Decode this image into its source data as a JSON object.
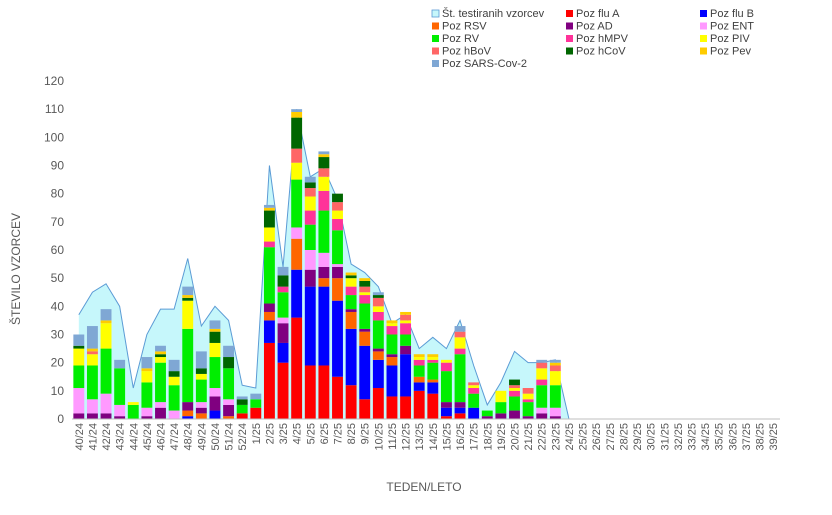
{
  "chart_data": {
    "type": "bar",
    "title": "",
    "xlabel": "TEDEN/LETO",
    "ylabel": "ŠTEVILO VZORCEV",
    "ylim": [
      0,
      120
    ],
    "yticks": [
      0,
      10,
      20,
      30,
      40,
      50,
      60,
      70,
      80,
      90,
      100,
      110,
      120
    ],
    "grid": false,
    "legend_position": "top-right",
    "categories": [
      "40/24",
      "41/24",
      "42/24",
      "43/24",
      "44/24",
      "45/24",
      "46/24",
      "47/24",
      "48/24",
      "49/24",
      "50/24",
      "51/24",
      "52/24",
      "1/25",
      "2/25",
      "3/25",
      "4/25",
      "5/25",
      "6/25",
      "7/25",
      "8/25",
      "9/25",
      "10/25",
      "11/25",
      "12/25",
      "13/25",
      "14/25",
      "15/25",
      "16/25",
      "17/25",
      "18/25",
      "19/25",
      "20/25",
      "21/25",
      "22/25",
      "23/25",
      "24/25",
      "25/25",
      "26/25",
      "27/25",
      "28/25",
      "29/25",
      "30/25",
      "31/25",
      "32/25",
      "33/25",
      "34/25",
      "35/25",
      "36/25",
      "37/25",
      "38/25",
      "39/25"
    ],
    "total": {
      "name": "Št. testiranih vzorcev",
      "color": "#c6f7fb",
      "line_color": "#5b9bd5",
      "values": [
        37,
        45,
        48,
        40,
        11,
        30,
        39,
        39,
        57,
        33,
        40,
        35,
        12,
        11,
        90,
        54,
        110,
        86,
        89,
        78,
        55,
        52,
        47,
        34,
        37,
        25,
        29,
        25,
        35,
        19,
        5,
        13,
        24,
        20,
        20,
        21,
        0,
        null,
        null,
        null,
        null,
        null,
        null,
        null,
        null,
        null,
        null,
        null,
        null,
        null,
        null,
        null
      ]
    },
    "series": [
      {
        "name": "Poz flu A",
        "color": "#ff0000",
        "values": [
          0,
          0,
          0,
          0,
          0,
          0,
          0,
          0,
          0,
          0,
          0,
          0,
          2,
          4,
          27,
          20,
          36,
          19,
          19,
          15,
          12,
          7,
          11,
          8,
          8,
          10,
          9,
          1,
          2,
          0,
          0,
          0,
          0,
          0,
          0,
          0,
          0,
          0,
          0,
          0,
          0,
          0,
          0,
          0,
          0,
          0,
          0,
          0,
          0,
          0,
          0,
          0
        ]
      },
      {
        "name": "Poz flu B",
        "color": "#0000ff",
        "values": [
          0,
          0,
          0,
          0,
          0,
          0,
          0,
          0,
          1,
          0,
          3,
          0,
          0,
          0,
          8,
          7,
          17,
          28,
          28,
          27,
          20,
          19,
          10,
          11,
          15,
          3,
          4,
          3,
          2,
          4,
          0,
          0,
          0,
          0,
          0,
          0,
          0,
          0,
          0,
          0,
          0,
          0,
          0,
          0,
          0,
          0,
          0,
          0,
          0,
          0,
          0,
          0
        ]
      },
      {
        "name": "Poz RSV",
        "color": "#ff6600",
        "values": [
          0,
          0,
          0,
          0,
          0,
          0,
          0,
          0,
          2,
          2,
          0,
          1,
          0,
          0,
          3,
          0,
          11,
          0,
          3,
          8,
          6,
          5,
          3,
          3,
          0,
          2,
          1,
          0,
          0,
          0,
          0,
          0,
          0,
          0,
          0,
          0,
          0,
          0,
          0,
          0,
          0,
          0,
          0,
          0,
          0,
          0,
          0,
          0,
          0,
          0,
          0,
          0
        ]
      },
      {
        "name": "Poz AD",
        "color": "#800080",
        "values": [
          2,
          2,
          2,
          1,
          0,
          1,
          4,
          0,
          3,
          2,
          5,
          4,
          0,
          0,
          3,
          7,
          0,
          6,
          4,
          4,
          1,
          1,
          1,
          1,
          3,
          0,
          0,
          2,
          2,
          0,
          1,
          2,
          3,
          1,
          2,
          1,
          0,
          0,
          0,
          0,
          0,
          0,
          0,
          0,
          0,
          0,
          0,
          0,
          0,
          0,
          0,
          0
        ]
      },
      {
        "name": "Poz ENT",
        "color": "#ff99ff",
        "values": [
          9,
          5,
          7,
          4,
          0,
          3,
          2,
          3,
          0,
          2,
          3,
          2,
          0,
          0,
          0,
          2,
          4,
          7,
          5,
          1,
          0,
          0,
          0,
          0,
          0,
          0,
          0,
          0,
          0,
          0,
          0,
          0,
          0,
          0,
          2,
          3,
          0,
          0,
          0,
          0,
          0,
          0,
          0,
          0,
          0,
          0,
          0,
          0,
          0,
          0,
          0,
          0
        ]
      },
      {
        "name": "Poz RV",
        "color": "#00ee00",
        "values": [
          8,
          12,
          16,
          13,
          5,
          9,
          14,
          9,
          26,
          8,
          11,
          11,
          3,
          3,
          20,
          9,
          17,
          9,
          15,
          12,
          5,
          9,
          10,
          7,
          4,
          4,
          6,
          11,
          17,
          5,
          2,
          4,
          5,
          5,
          8,
          8,
          0,
          0,
          0,
          0,
          0,
          0,
          0,
          0,
          0,
          0,
          0,
          0,
          0,
          0,
          0,
          0
        ]
      },
      {
        "name": "Poz hMPV",
        "color": "#ff3399",
        "values": [
          0,
          0,
          0,
          0,
          0,
          0,
          0,
          0,
          0,
          0,
          0,
          0,
          0,
          0,
          2,
          2,
          0,
          5,
          7,
          4,
          3,
          3,
          3,
          3,
          4,
          2,
          1,
          3,
          2,
          2,
          0,
          0,
          2,
          1,
          2,
          0,
          0,
          0,
          0,
          0,
          0,
          0,
          0,
          0,
          0,
          0,
          0,
          0,
          0,
          0,
          0,
          0
        ]
      },
      {
        "name": "Poz PIV",
        "color": "#ffff00",
        "values": [
          6,
          4,
          9,
          0,
          1,
          4,
          2,
          3,
          10,
          2,
          5,
          0,
          0,
          0,
          5,
          0,
          6,
          5,
          5,
          3,
          3,
          1,
          2,
          1,
          1,
          1,
          1,
          1,
          4,
          1,
          0,
          4,
          1,
          2,
          4,
          5,
          0,
          0,
          0,
          0,
          0,
          0,
          0,
          0,
          0,
          0,
          0,
          0,
          0,
          0,
          0,
          0
        ]
      },
      {
        "name": "Poz hBoV",
        "color": "#ff6666",
        "values": [
          0,
          1,
          0,
          0,
          0,
          0,
          0,
          0,
          0,
          0,
          0,
          0,
          0,
          0,
          0,
          0,
          5,
          3,
          3,
          3,
          0,
          2,
          3,
          0,
          2,
          0,
          0,
          0,
          2,
          1,
          0,
          0,
          1,
          2,
          2,
          2,
          0,
          0,
          0,
          0,
          0,
          0,
          0,
          0,
          0,
          0,
          0,
          0,
          0,
          0,
          0,
          0
        ]
      },
      {
        "name": "Poz hCoV",
        "color": "#006600",
        "values": [
          1,
          0,
          0,
          0,
          0,
          0,
          1,
          2,
          1,
          2,
          4,
          4,
          2,
          0,
          6,
          4,
          11,
          2,
          4,
          3,
          1,
          2,
          1,
          0,
          0,
          0,
          0,
          0,
          0,
          0,
          0,
          0,
          2,
          0,
          0,
          0,
          0,
          0,
          0,
          0,
          0,
          0,
          0,
          0,
          0,
          0,
          0,
          0,
          0,
          0,
          0,
          0
        ]
      },
      {
        "name": "Poz Pev",
        "color": "#ffcc00",
        "values": [
          0,
          1,
          1,
          0,
          0,
          1,
          1,
          0,
          1,
          0,
          1,
          0,
          0,
          0,
          1,
          0,
          2,
          0,
          1,
          0,
          1,
          1,
          0,
          1,
          1,
          1,
          1,
          0,
          0,
          0,
          0,
          0,
          0,
          0,
          0,
          1,
          0,
          0,
          0,
          0,
          0,
          0,
          0,
          0,
          0,
          0,
          0,
          0,
          0,
          0,
          0,
          0
        ]
      },
      {
        "name": "Poz SARS-Cov-2",
        "color": "#7fa7d4",
        "values": [
          4,
          8,
          4,
          3,
          0,
          4,
          2,
          4,
          3,
          6,
          3,
          4,
          1,
          2,
          1,
          3,
          1,
          2,
          1,
          0,
          0,
          0,
          1,
          0,
          0,
          0,
          0,
          0,
          2,
          0,
          0,
          0,
          0,
          0,
          1,
          1,
          0,
          0,
          0,
          0,
          0,
          0,
          0,
          0,
          0,
          0,
          0,
          0,
          0,
          0,
          0,
          0
        ]
      }
    ]
  }
}
